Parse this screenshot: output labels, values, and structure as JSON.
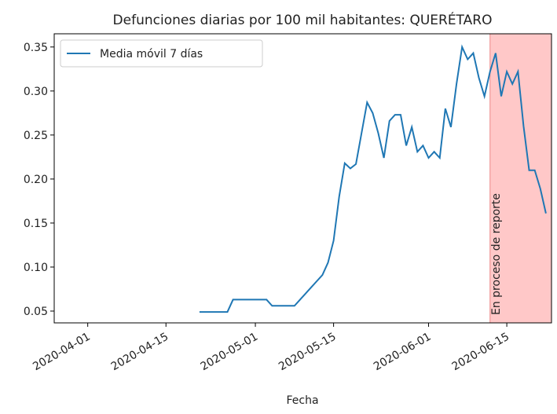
{
  "chart_data": {
    "type": "line",
    "title": "Defunciones diarias por 100 mil habitantes: QUERÉTARO",
    "xlabel": "Fecha",
    "x": [
      "2020-04-21",
      "2020-04-22",
      "2020-04-23",
      "2020-04-24",
      "2020-04-25",
      "2020-04-26",
      "2020-04-27",
      "2020-04-28",
      "2020-04-29",
      "2020-04-30",
      "2020-05-01",
      "2020-05-02",
      "2020-05-03",
      "2020-05-04",
      "2020-05-05",
      "2020-05-06",
      "2020-05-07",
      "2020-05-08",
      "2020-05-09",
      "2020-05-10",
      "2020-05-11",
      "2020-05-12",
      "2020-05-13",
      "2020-05-14",
      "2020-05-15",
      "2020-05-16",
      "2020-05-17",
      "2020-05-18",
      "2020-05-19",
      "2020-05-20",
      "2020-05-21",
      "2020-05-22",
      "2020-05-23",
      "2020-05-24",
      "2020-05-25",
      "2020-05-26",
      "2020-05-27",
      "2020-05-28",
      "2020-05-29",
      "2020-05-30",
      "2020-05-31",
      "2020-06-01",
      "2020-06-02",
      "2020-06-03",
      "2020-06-04",
      "2020-06-05",
      "2020-06-06",
      "2020-06-07",
      "2020-06-08",
      "2020-06-09",
      "2020-06-10",
      "2020-06-11",
      "2020-06-12",
      "2020-06-13",
      "2020-06-14",
      "2020-06-15",
      "2020-06-16",
      "2020-06-17",
      "2020-06-18",
      "2020-06-19",
      "2020-06-20",
      "2020-06-21",
      "2020-06-22"
    ],
    "series": [
      {
        "name": "Media móvil 7 días",
        "color": "#1f77b4",
        "values": [
          0.049,
          0.049,
          0.049,
          0.049,
          0.049,
          0.049,
          0.063,
          0.063,
          0.063,
          0.063,
          0.063,
          0.063,
          0.063,
          0.056,
          0.056,
          0.056,
          0.056,
          0.056,
          0.063,
          0.07,
          0.077,
          0.084,
          0.091,
          0.105,
          0.13,
          0.18,
          0.218,
          0.212,
          0.217,
          0.252,
          0.287,
          0.275,
          0.252,
          0.224,
          0.266,
          0.273,
          0.273,
          0.238,
          0.259,
          0.231,
          0.238,
          0.224,
          0.231,
          0.224,
          0.28,
          0.259,
          0.308,
          0.35,
          0.336,
          0.343,
          0.315,
          0.294,
          0.322,
          0.343,
          0.294,
          0.322,
          0.308,
          0.322,
          0.26,
          0.21,
          0.21,
          0.189,
          0.161
        ]
      }
    ],
    "xlim": [
      "2020-03-26",
      "2020-06-23"
    ],
    "xticks": [
      "2020-04-01",
      "2020-04-15",
      "2020-05-01",
      "2020-05-15",
      "2020-06-01",
      "2020-06-15"
    ],
    "ylim": [
      0.0366,
      0.365
    ],
    "yticks": [
      0.05,
      {
        "value": 0.1,
        "label": "0.10"
      },
      0.15,
      {
        "value": 0.2,
        "label": "0.20"
      },
      0.25,
      {
        "value": 0.3,
        "label": "0.30"
      },
      0.35
    ],
    "span": {
      "start": "2020-06-12",
      "end": "2020-06-23",
      "color": "#ffc8c8",
      "text": "En proceso de reporte"
    },
    "legend": "upper left"
  }
}
